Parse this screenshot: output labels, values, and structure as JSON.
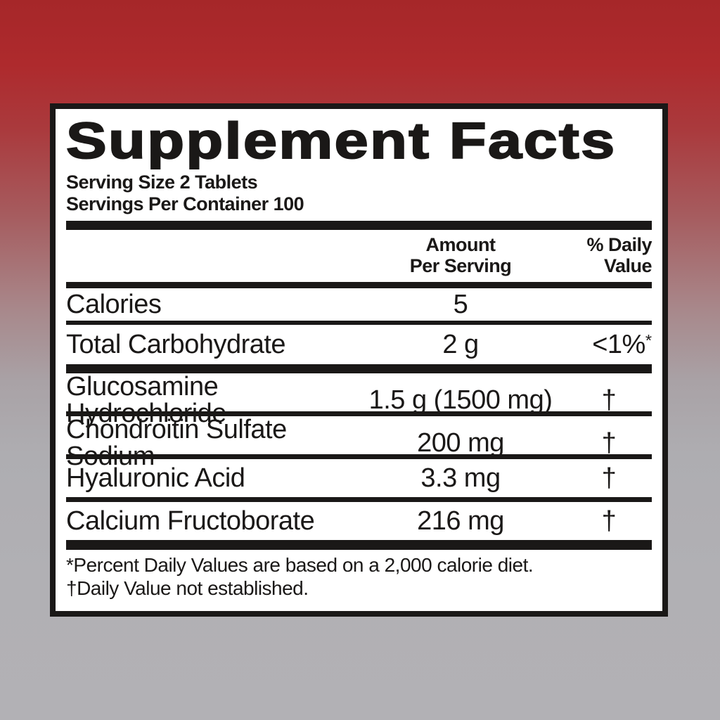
{
  "label": {
    "title": "Supplement Facts",
    "serving_size": "Serving Size 2 Tablets",
    "servings_per_container": "Servings Per Container 100",
    "header": {
      "amount_line1": "Amount",
      "amount_line2": "Per Serving",
      "dv_line1": "% Daily",
      "dv_line2": "Value"
    },
    "table": {
      "rows": [
        {
          "name": "Calories",
          "amount": "5",
          "dv": ""
        },
        {
          "name": "Total Carbohydrate",
          "amount": "2 g",
          "dv": "<1%",
          "dv_sup": "*"
        },
        {
          "name": "Glucosamine Hydrochloride",
          "amount": "1.5 g (1500 mg)",
          "dv": "†"
        },
        {
          "name": "Chondroitin Sulfate Sodium",
          "amount": "200 mg",
          "dv": "†"
        },
        {
          "name": "Hyaluronic Acid",
          "amount": "3.3 mg",
          "dv": "†"
        },
        {
          "name": "Calcium Fructoborate",
          "amount": "216 mg",
          "dv": "†"
        }
      ]
    },
    "footnotes": [
      "*Percent Daily Values are based on a 2,000 calorie diet.",
      "†Daily Value not established."
    ]
  },
  "colors": {
    "background_top": "#ae2a2d",
    "background_bottom": "#b2b1b5",
    "ink": "#1a1817",
    "panel": "#ffffff"
  }
}
